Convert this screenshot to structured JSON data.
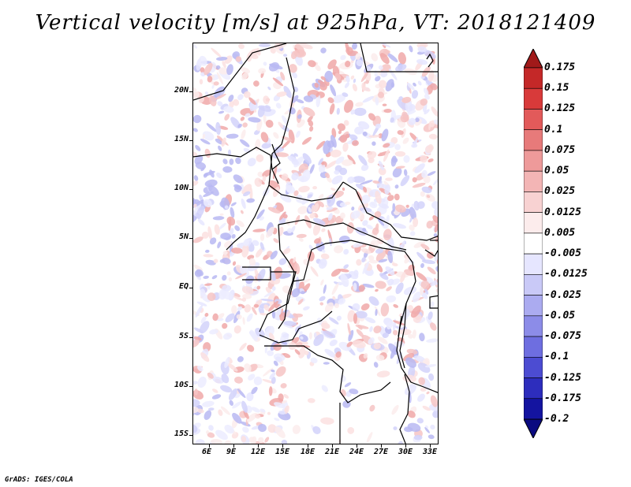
{
  "title": "Vertical velocity [m/s] at 925hPa, VT: 2018121409",
  "footer": "GrADS: IGES/COLA",
  "lat_labels": [
    "20N",
    "15N",
    "10N",
    "5N",
    "EQ",
    "5S",
    "10S",
    "15S"
  ],
  "lon_labels": [
    "6E",
    "9E",
    "12E",
    "15E",
    "18E",
    "21E",
    "24E",
    "27E",
    "30E",
    "33E"
  ],
  "colorbar": {
    "levels": [
      "0.175",
      "0.15",
      "0.125",
      "0.1",
      "0.075",
      "0.05",
      "0.025",
      "0.0125",
      "0.005",
      "-0.005",
      "-0.0125",
      "-0.025",
      "-0.05",
      "-0.075",
      "-0.1",
      "-0.125",
      "-0.175",
      "-0.2"
    ],
    "colors": [
      "#a11a1a",
      "#c42828",
      "#d83a3a",
      "#e25a5a",
      "#e77a7a",
      "#ee9a9a",
      "#f3b5b5",
      "#f8d2d2",
      "#fcecec",
      "#ffffff",
      "#e6e6ff",
      "#c9c9f7",
      "#ababf0",
      "#8c8ce8",
      "#6e6ee0",
      "#4c4cd2",
      "#2d2dbd",
      "#1414a0",
      "#0a0a80"
    ]
  }
}
